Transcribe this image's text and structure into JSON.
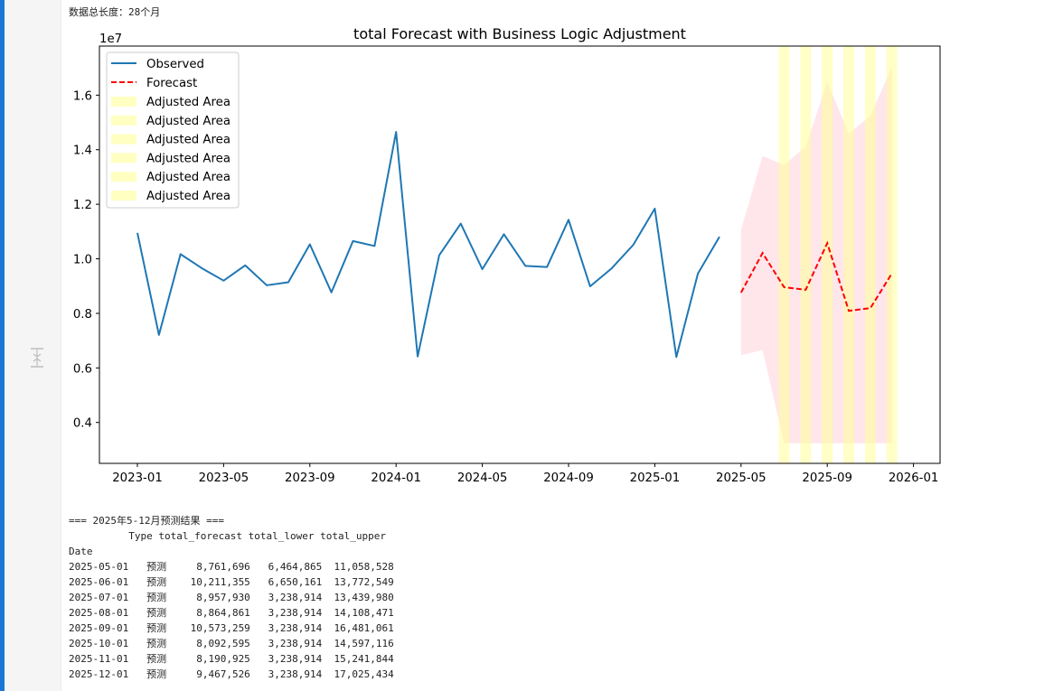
{
  "output": {
    "data_length_line": "数据总长度：28个月",
    "results_heading": "=== 2025年5-12月预测结果 ===",
    "table_header": "          Type total_forecast total_lower total_upper",
    "index_name": "Date",
    "rows": [
      {
        "date": "2025-05-01",
        "type": "预测",
        "forecast": "8,761,696",
        "lower": "6,464,865",
        "upper": "11,058,528"
      },
      {
        "date": "2025-06-01",
        "type": "预测",
        "forecast": "10,211,355",
        "lower": "6,650,161",
        "upper": "13,772,549"
      },
      {
        "date": "2025-07-01",
        "type": "预测",
        "forecast": "8,957,930",
        "lower": "3,238,914",
        "upper": "13,439,980"
      },
      {
        "date": "2025-08-01",
        "type": "预测",
        "forecast": "8,864,861",
        "lower": "3,238,914",
        "upper": "14,108,471"
      },
      {
        "date": "2025-09-01",
        "type": "预测",
        "forecast": "10,573,259",
        "lower": "3,238,914",
        "upper": "16,481,061"
      },
      {
        "date": "2025-10-01",
        "type": "预测",
        "forecast": "8,092,595",
        "lower": "3,238,914",
        "upper": "14,597,116"
      },
      {
        "date": "2025-11-01",
        "type": "预测",
        "forecast": "8,190,925",
        "lower": "3,238,914",
        "upper": "15,241,844"
      },
      {
        "date": "2025-12-01",
        "type": "预测",
        "forecast": "9,467,526",
        "lower": "3,238,914",
        "upper": "17,025,434"
      }
    ]
  },
  "chart_data": {
    "type": "line",
    "title": "total Forecast with Business Logic Adjustment",
    "scale_label": "1e7",
    "x_ticks": [
      "2023-01",
      "2023-05",
      "2023-09",
      "2024-01",
      "2024-05",
      "2024-09",
      "2025-01",
      "2025-05",
      "2025-09",
      "2026-01"
    ],
    "y_ticks": [
      "0.4",
      "0.6",
      "0.8",
      "1.0",
      "1.2",
      "1.4",
      "1.6"
    ],
    "ylim": [
      0.25,
      1.78
    ],
    "colors": {
      "observed": "#1f77b4",
      "forecast": "#ff0000",
      "band": "#ffc0cb",
      "adjusted": "#ffff99"
    },
    "observed": {
      "name": "Observed",
      "x": [
        "2023-01",
        "2023-02",
        "2023-03",
        "2023-04",
        "2023-05",
        "2023-06",
        "2023-07",
        "2023-08",
        "2023-09",
        "2023-10",
        "2023-11",
        "2023-12",
        "2024-01",
        "2024-02",
        "2024-03",
        "2024-04",
        "2024-05",
        "2024-06",
        "2024-07",
        "2024-08",
        "2024-09",
        "2024-10",
        "2024-11",
        "2024-12",
        "2025-01",
        "2025-02",
        "2025-03",
        "2025-04"
      ],
      "values": [
        1.095,
        0.721,
        1.017,
        0.965,
        0.92,
        0.976,
        0.903,
        0.914,
        1.053,
        0.877,
        1.065,
        1.047,
        1.465,
        0.642,
        1.013,
        1.129,
        0.962,
        1.09,
        0.974,
        0.97,
        1.143,
        0.899,
        0.965,
        1.051,
        1.184,
        0.64,
        0.946,
        1.081
      ]
    },
    "forecast": {
      "name": "Forecast",
      "x": [
        "2025-05",
        "2025-06",
        "2025-07",
        "2025-08",
        "2025-09",
        "2025-10",
        "2025-11",
        "2025-12"
      ],
      "values": [
        0.8761696,
        1.0211355,
        0.895793,
        0.8864861,
        1.0573259,
        0.8092595,
        0.8190925,
        0.9467526
      ],
      "lower": [
        0.6464865,
        0.6650161,
        0.3238914,
        0.3238914,
        0.3238914,
        0.3238914,
        0.3238914,
        0.3238914
      ],
      "upper": [
        1.1058528,
        1.3772549,
        1.343998,
        1.4108471,
        1.6481061,
        1.4597116,
        1.5241844,
        1.7025434
      ]
    },
    "adjusted_area_label": "Adjusted Area",
    "adjusted_months": [
      "2025-07",
      "2025-08",
      "2025-09",
      "2025-10",
      "2025-11",
      "2025-12"
    ],
    "legend_position": "upper-left",
    "grid": false
  }
}
